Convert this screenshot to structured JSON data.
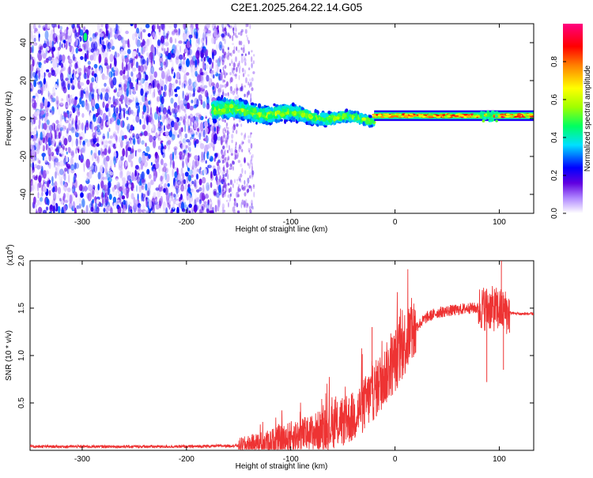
{
  "figure_title": "C2E1.2025.264.22.14.G05",
  "chart_data": [
    {
      "type": "heatmap",
      "xlabel": "Height of straight line (km)",
      "ylabel": "Frequency (Hz)",
      "xlim": [
        -350,
        133
      ],
      "ylim": [
        -50,
        50
      ],
      "x_ticks": [
        -300,
        -200,
        -100,
        0,
        100
      ],
      "y_ticks": [
        -40,
        -20,
        0,
        20,
        40
      ],
      "colorbar": {
        "label": "Normalized spectral amplitude",
        "range": [
          0,
          1
        ],
        "ticks": [
          "0.0",
          "0.2",
          "0.4",
          "0.6",
          "0.8"
        ],
        "colors": [
          "#ffffff",
          "#b088ff",
          "#6000e0",
          "#0000ff",
          "#00e0ff",
          "#00ff60",
          "#a0ff00",
          "#ffff00",
          "#ff8000",
          "#ff0000",
          "#ff0080"
        ]
      },
      "regions": [
        {
          "x_range": [
            -350,
            -165
          ],
          "freq_range": [
            -50,
            50
          ],
          "amplitude": [
            0.0,
            0.3
          ],
          "description_visible": false
        },
        {
          "x_range": [
            -165,
            -135
          ],
          "freq_range": [
            -50,
            50
          ],
          "amplitude": [
            0.0,
            0.15
          ]
        },
        {
          "x_range": [
            -175,
            -20
          ],
          "freq_center_start": 5,
          "freq_center_end": -1,
          "half_width_start": 7,
          "half_width_end": 3,
          "amplitude": [
            0.3,
            0.65
          ]
        },
        {
          "x_range": [
            -20,
            133
          ],
          "freq_center": 1.5,
          "half_width": 2,
          "amplitude": [
            0.5,
            0.95
          ]
        }
      ],
      "hot_spot": {
        "x": -297,
        "y": 43,
        "amplitude": 0.45
      }
    },
    {
      "type": "line",
      "xlabel": "Height of straight line (km)",
      "ylabel": "SNR (10 * v/v)",
      "y_multiplier": "(x10",
      "y_multiplier_exp": "4",
      "y_multiplier_close": ")",
      "xlim": [
        -350,
        133
      ],
      "ylim": [
        0,
        2.0
      ],
      "x_ticks": [
        -300,
        -200,
        -100,
        0,
        100
      ],
      "y_ticks": [
        "0.5",
        "1.0",
        "1.5",
        "2.0"
      ],
      "y_tick_values": [
        0.5,
        1.0,
        1.5,
        2.0
      ],
      "color": "#ee3333",
      "trend": {
        "x": [
          -350,
          -200,
          -150,
          -120,
          -100,
          -80,
          -60,
          -40,
          -30,
          -20,
          -10,
          0,
          10,
          20,
          30,
          40,
          50,
          60,
          70,
          80,
          90,
          100,
          110,
          120,
          133
        ],
        "y": [
          0.04,
          0.04,
          0.05,
          0.09,
          0.14,
          0.18,
          0.25,
          0.35,
          0.48,
          0.62,
          0.78,
          0.95,
          1.15,
          1.3,
          1.4,
          1.45,
          1.47,
          1.48,
          1.5,
          1.5,
          1.5,
          1.48,
          1.45,
          1.44,
          1.44
        ]
      },
      "spikes": [
        {
          "x": 102,
          "y": 2.0
        },
        {
          "x": 104,
          "y": 0.85
        },
        {
          "x": 88,
          "y": 0.72
        },
        {
          "x": -22,
          "y": 1.3
        }
      ]
    }
  ]
}
